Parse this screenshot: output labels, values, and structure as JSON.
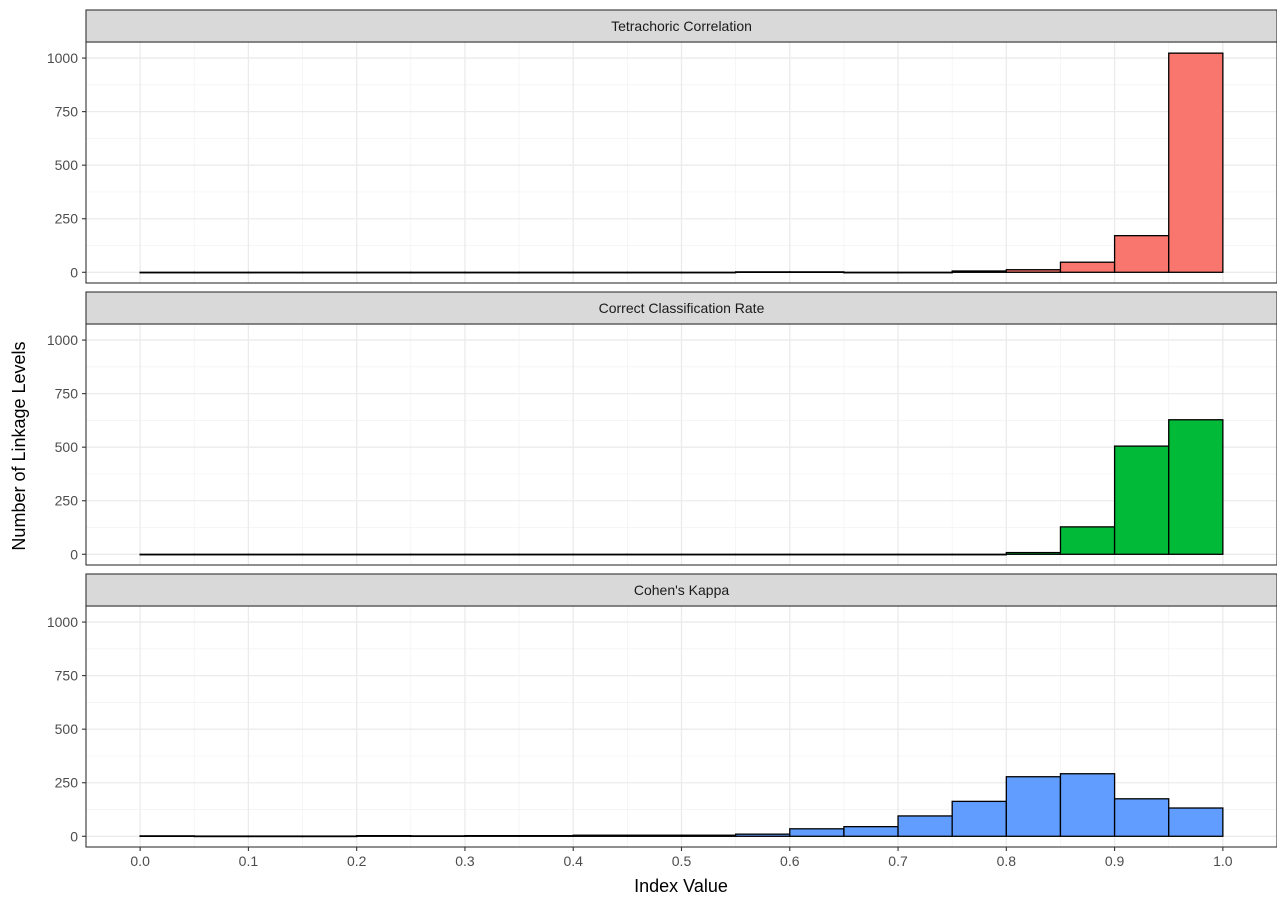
{
  "chart_data": {
    "type": "bar",
    "xlabel": "Index Value",
    "ylabel": "Number of Linkage Levels",
    "xlim": [
      -0.05,
      1.05
    ],
    "ylim": [
      -50,
      1075
    ],
    "x_ticks": [
      "0.0",
      "0.1",
      "0.2",
      "0.3",
      "0.4",
      "0.5",
      "0.6",
      "0.7",
      "0.8",
      "0.9",
      "1.0"
    ],
    "y_ticks": [
      "0",
      "250",
      "500",
      "750",
      "1000"
    ],
    "bin_width": 0.05,
    "bin_starts": [
      0.0,
      0.05,
      0.1,
      0.15,
      0.2,
      0.25,
      0.3,
      0.35,
      0.4,
      0.45,
      0.5,
      0.55,
      0.6,
      0.65,
      0.7,
      0.75,
      0.8,
      0.85,
      0.9,
      0.95
    ],
    "grid": true,
    "legend": "none",
    "panels": [
      {
        "name": "Tetrachoric Correlation",
        "color": "#F8766D",
        "values": [
          0,
          0,
          0,
          0,
          0,
          0,
          0,
          0,
          0,
          0,
          0,
          2,
          2,
          0,
          0,
          6,
          12,
          47,
          171,
          1023
        ]
      },
      {
        "name": "Correct Classification Rate",
        "color": "#00BA38",
        "values": [
          0,
          0,
          0,
          0,
          0,
          0,
          0,
          0,
          0,
          0,
          0,
          0,
          0,
          0,
          0,
          0,
          8,
          128,
          505,
          628
        ]
      },
      {
        "name": "Cohen's Kappa",
        "color": "#619CFF",
        "values": [
          2,
          1,
          1,
          1,
          3,
          2,
          3,
          3,
          5,
          5,
          5,
          10,
          35,
          45,
          95,
          163,
          278,
          292,
          175,
          132
        ]
      }
    ]
  }
}
